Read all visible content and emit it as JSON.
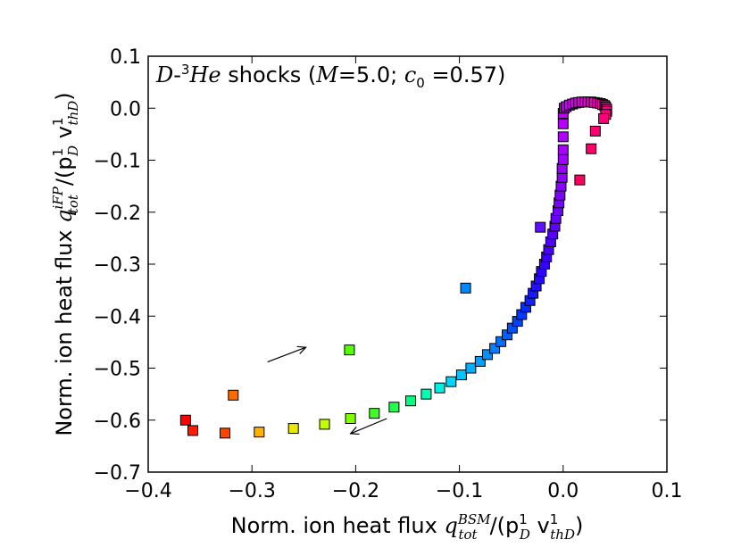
{
  "chart_data": {
    "type": "scatter",
    "xlabel": {
      "prefix": "Norm. ion heat flux ",
      "math": "q",
      "sup": "BSM",
      "sub": "tot",
      "rest": "/(p",
      "rest_sup": "1",
      "rest_sub": "D",
      "rest2": " v",
      "rest2_sup": "1",
      "rest2_sub": "thD",
      "close": ")"
    },
    "ylabel": {
      "prefix": "Norm. ion heat flux ",
      "math": "q",
      "sup": "iFP",
      "sub": "tot",
      "rest": "/(p",
      "rest_sup": "1",
      "rest_sub": "D",
      "rest2": " v",
      "rest2_sup": "1",
      "rest2_sub": "thD",
      "close": ")"
    },
    "annotation": {
      "species_a": "D",
      "dash": "-",
      "species_sup": "3",
      "species_b": "He",
      "text": " shocks (",
      "m_label": "M",
      "m_eq": "=5.0; ",
      "c_label": "c",
      "c_sub": "0",
      "c_eq": " =0.57)"
    },
    "xlim": [
      -0.4,
      0.1
    ],
    "ylim": [
      -0.7,
      0.1
    ],
    "xticks": [
      "−0.4",
      "−0.3",
      "−0.2",
      "−0.1",
      "0.0",
      "0.1"
    ],
    "xtick_values": [
      -0.4,
      -0.3,
      -0.2,
      -0.1,
      0.0,
      0.1
    ],
    "yticks": [
      "0.1",
      "0.0",
      "−0.1",
      "−0.2",
      "−0.3",
      "−0.4",
      "−0.5",
      "−0.6",
      "−0.7"
    ],
    "ytick_values": [
      0.1,
      0.0,
      -0.1,
      -0.2,
      -0.3,
      -0.4,
      -0.5,
      -0.6,
      -0.7
    ],
    "grid": false,
    "marker": "square",
    "points": [
      {
        "x": -0.364,
        "y": -0.6,
        "color": "#ff0000"
      },
      {
        "x": -0.357,
        "y": -0.62,
        "color": "#ff1a00"
      },
      {
        "x": -0.318,
        "y": -0.552,
        "color": "#ff6a00"
      },
      {
        "x": -0.326,
        "y": -0.625,
        "color": "#ff4400"
      },
      {
        "x": -0.293,
        "y": -0.623,
        "color": "#ffb000"
      },
      {
        "x": -0.26,
        "y": -0.616,
        "color": "#e8e800"
      },
      {
        "x": -0.23,
        "y": -0.608,
        "color": "#bfff00"
      },
      {
        "x": -0.206,
        "y": -0.465,
        "color": "#55ff00"
      },
      {
        "x": -0.205,
        "y": -0.597,
        "color": "#7fff00"
      },
      {
        "x": -0.182,
        "y": -0.587,
        "color": "#40ff20"
      },
      {
        "x": -0.163,
        "y": -0.575,
        "color": "#20ff50"
      },
      {
        "x": -0.147,
        "y": -0.563,
        "color": "#00ff80"
      },
      {
        "x": -0.132,
        "y": -0.55,
        "color": "#00ffb0"
      },
      {
        "x": -0.119,
        "y": -0.538,
        "color": "#00f0e0"
      },
      {
        "x": -0.094,
        "y": -0.346,
        "color": "#0088ff"
      },
      {
        "x": -0.108,
        "y": -0.526,
        "color": "#00d8ff"
      },
      {
        "x": -0.098,
        "y": -0.513,
        "color": "#00c4ff"
      },
      {
        "x": -0.089,
        "y": -0.5,
        "color": "#00b0ff"
      },
      {
        "x": -0.08,
        "y": -0.487,
        "color": "#00a0ff"
      },
      {
        "x": -0.073,
        "y": -0.474,
        "color": "#0090ff"
      },
      {
        "x": -0.066,
        "y": -0.462,
        "color": "#0080ff"
      },
      {
        "x": -0.06,
        "y": -0.449,
        "color": "#0070ff"
      },
      {
        "x": -0.054,
        "y": -0.436,
        "color": "#0060ff"
      },
      {
        "x": -0.049,
        "y": -0.423,
        "color": "#0050ff"
      },
      {
        "x": -0.044,
        "y": -0.41,
        "color": "#0044ff"
      },
      {
        "x": -0.04,
        "y": -0.397,
        "color": "#0038ff"
      },
      {
        "x": -0.036,
        "y": -0.383,
        "color": "#002cff"
      },
      {
        "x": -0.032,
        "y": -0.37,
        "color": "#1020ff"
      },
      {
        "x": -0.029,
        "y": -0.356,
        "color": "#1818ff"
      },
      {
        "x": -0.026,
        "y": -0.342,
        "color": "#2010ff"
      },
      {
        "x": -0.023,
        "y": -0.328,
        "color": "#2808ff"
      },
      {
        "x": -0.021,
        "y": -0.314,
        "color": "#3000ff"
      },
      {
        "x": -0.018,
        "y": -0.3,
        "color": "#3800ff"
      },
      {
        "x": -0.016,
        "y": -0.286,
        "color": "#4000ff"
      },
      {
        "x": -0.014,
        "y": -0.272,
        "color": "#4800ff"
      },
      {
        "x": -0.022,
        "y": -0.229,
        "color": "#6010ff"
      },
      {
        "x": -0.012,
        "y": -0.257,
        "color": "#5000ff"
      },
      {
        "x": -0.01,
        "y": -0.242,
        "color": "#5800ff"
      },
      {
        "x": -0.008,
        "y": -0.227,
        "color": "#6000ff"
      },
      {
        "x": -0.007,
        "y": -0.212,
        "color": "#6800ff"
      },
      {
        "x": -0.005,
        "y": -0.197,
        "color": "#7000ff"
      },
      {
        "x": -0.004,
        "y": -0.182,
        "color": "#7800ff"
      },
      {
        "x": -0.003,
        "y": -0.167,
        "color": "#8000ff"
      },
      {
        "x": -0.002,
        "y": -0.15,
        "color": "#8800ff"
      },
      {
        "x": -0.001,
        "y": -0.133,
        "color": "#9000ff"
      },
      {
        "x": -0.001,
        "y": -0.116,
        "color": "#9800ff"
      },
      {
        "x": 0.0,
        "y": -0.099,
        "color": "#a000ff"
      },
      {
        "x": 0.0,
        "y": -0.08,
        "color": "#a800ff"
      },
      {
        "x": 0.0,
        "y": -0.055,
        "color": "#b000ff"
      },
      {
        "x": 0.0,
        "y": -0.03,
        "color": "#b800ff"
      },
      {
        "x": 0.0,
        "y": -0.01,
        "color": "#c000ff"
      },
      {
        "x": 0.001,
        "y": 0.0,
        "color": "#c400ff"
      },
      {
        "x": 0.003,
        "y": 0.003,
        "color": "#c800ff"
      },
      {
        "x": 0.006,
        "y": 0.006,
        "color": "#cc00ff"
      },
      {
        "x": 0.009,
        "y": 0.008,
        "color": "#d000f8"
      },
      {
        "x": 0.012,
        "y": 0.01,
        "color": "#d400f0"
      },
      {
        "x": 0.015,
        "y": 0.011,
        "color": "#d800e8"
      },
      {
        "x": 0.018,
        "y": 0.012,
        "color": "#dc00e0"
      },
      {
        "x": 0.021,
        "y": 0.012,
        "color": "#e000d8"
      },
      {
        "x": 0.024,
        "y": 0.012,
        "color": "#e400d0"
      },
      {
        "x": 0.027,
        "y": 0.012,
        "color": "#e800c8"
      },
      {
        "x": 0.03,
        "y": 0.011,
        "color": "#ec00c0"
      },
      {
        "x": 0.033,
        "y": 0.01,
        "color": "#ee00b8"
      },
      {
        "x": 0.036,
        "y": 0.009,
        "color": "#f000b0"
      },
      {
        "x": 0.038,
        "y": 0.007,
        "color": "#f200a8"
      },
      {
        "x": 0.04,
        "y": 0.005,
        "color": "#f400a0"
      },
      {
        "x": 0.041,
        "y": 0.002,
        "color": "#f60098"
      },
      {
        "x": 0.042,
        "y": -0.002,
        "color": "#f80090"
      },
      {
        "x": 0.042,
        "y": -0.006,
        "color": "#fa0088"
      },
      {
        "x": 0.041,
        "y": -0.012,
        "color": "#fc0080"
      },
      {
        "x": 0.039,
        "y": -0.02,
        "color": "#fe0078"
      },
      {
        "x": 0.031,
        "y": -0.044,
        "color": "#ff0070"
      },
      {
        "x": 0.027,
        "y": -0.078,
        "color": "#ff0068"
      },
      {
        "x": 0.016,
        "y": -0.138,
        "color": "#ff0060"
      }
    ],
    "arrows": [
      {
        "name": "arrow-increasing",
        "from": [
          -0.285,
          -0.488
        ],
        "to": [
          -0.248,
          -0.46
        ]
      },
      {
        "name": "arrow-decreasing",
        "from": [
          -0.17,
          -0.597
        ],
        "to": [
          -0.205,
          -0.626
        ]
      }
    ]
  }
}
